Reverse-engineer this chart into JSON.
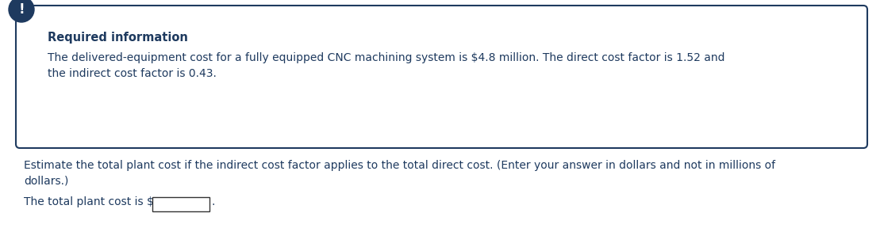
{
  "box_color": "#1e3a5f",
  "box_bg": "#ffffff",
  "icon_color": "#1e3a5f",
  "icon_text": "!",
  "required_title": "Required information",
  "required_title_color": "#1e3a5f",
  "body_text_line1": "The delivered-equipment cost for a fully equipped CNC machining system is $4.8 million. The direct cost factor is 1.52 and",
  "body_text_line2": "the indirect cost factor is 0.43.",
  "body_text_color": "#1e3a5f",
  "question_line1": "Estimate the total plant cost if the indirect cost factor applies to the total direct cost. (Enter your answer in dollars and not in millions of",
  "question_line2": "dollars.)",
  "question_color": "#1e3a5f",
  "answer_label": "The total plant cost is $",
  "answer_label_color": "#1e3a5f",
  "background_color": "#ffffff",
  "font_size_title": 10.5,
  "font_size_body": 10,
  "font_size_question": 10
}
